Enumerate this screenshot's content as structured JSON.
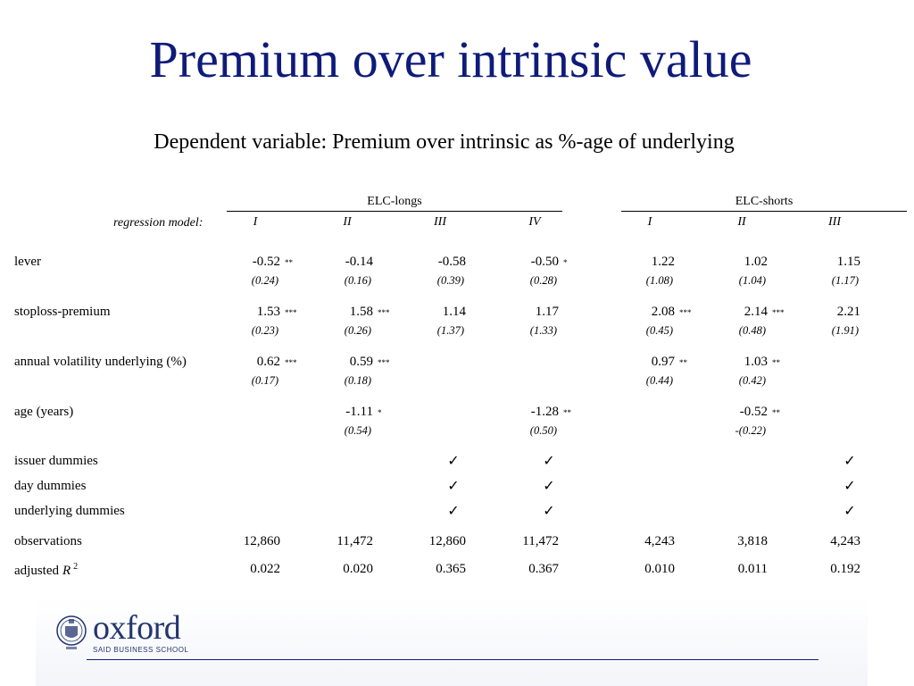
{
  "title": "Premium over intrinsic value",
  "subtitle": "Dependent variable: Premium over intrinsic as %-age of underlying",
  "table": {
    "group_longs": "ELC-longs",
    "group_shorts": "ELC-shorts",
    "model_label": "regression model:",
    "models": [
      "I",
      "II",
      "III",
      "IV",
      "I",
      "II",
      "III"
    ],
    "rows": [
      {
        "label": "lever",
        "values": [
          "-0.52",
          "-0.14",
          "-0.58",
          "-0.50",
          "1.22",
          "1.02",
          "1.15"
        ],
        "stars": [
          "**",
          "",
          "",
          "*",
          "",
          "",
          ""
        ],
        "se": [
          "(0.24)",
          "(0.16)",
          "(0.39)",
          "(0.28)",
          "(1.08)",
          "(1.04)",
          "(1.17)"
        ]
      },
      {
        "label": "stoploss-premium",
        "values": [
          "1.53",
          "1.58",
          "1.14",
          "1.17",
          "2.08",
          "2.14",
          "2.21"
        ],
        "stars": [
          "***",
          "***",
          "",
          "",
          "***",
          "***",
          ""
        ],
        "se": [
          "(0.23)",
          "(0.26)",
          "(1.37)",
          "(1.33)",
          "(0.45)",
          "(0.48)",
          "(1.91)"
        ]
      },
      {
        "label": "annual volatility underlying (%)",
        "values": [
          "0.62",
          "0.59",
          "",
          "",
          "0.97",
          "1.03",
          ""
        ],
        "stars": [
          "***",
          "***",
          "",
          "",
          "**",
          "**",
          ""
        ],
        "se": [
          "(0.17)",
          "(0.18)",
          "",
          "",
          "(0.44)",
          "(0.42)",
          ""
        ]
      },
      {
        "label": "age (years)",
        "values": [
          "",
          "-1.11",
          "",
          "-1.28",
          "",
          "-0.52",
          ""
        ],
        "stars": [
          "",
          "*",
          "",
          "**",
          "",
          "**",
          ""
        ],
        "se": [
          "",
          "(0.54)",
          "",
          "(0.50)",
          "",
          "-(0.22)",
          ""
        ]
      }
    ],
    "check_rows": [
      {
        "label": "issuer dummies",
        "marks": [
          "",
          "",
          "✓",
          "✓",
          "",
          "",
          "✓"
        ]
      },
      {
        "label": "day dummies",
        "marks": [
          "",
          "",
          "✓",
          "✓",
          "",
          "",
          "✓"
        ]
      },
      {
        "label": "underlying dummies",
        "marks": [
          "",
          "",
          "✓",
          "✓",
          "",
          "",
          "✓"
        ]
      }
    ],
    "observations": {
      "label": "observations",
      "values": [
        "12,860",
        "11,472",
        "12,860",
        "11,472",
        "4,243",
        "3,818",
        "4,243"
      ]
    },
    "adj_r2": {
      "label_prefix": "adjusted",
      "label_var": "R",
      "label_sup": "2",
      "values": [
        "0.022",
        "0.020",
        "0.365",
        "0.367",
        "0.010",
        "0.011",
        "0.192"
      ]
    }
  },
  "footer": {
    "logo_word": "oxford",
    "logo_sub": "SAID BUSINESS SCHOOL"
  },
  "colors": {
    "title": "#0f1b7a",
    "logo": "#24356e"
  }
}
